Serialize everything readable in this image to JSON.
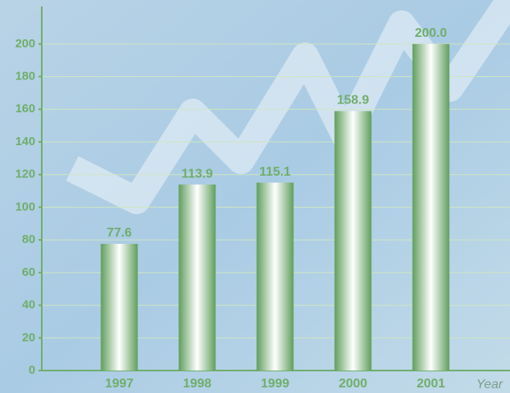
{
  "chart_data": {
    "type": "bar",
    "x_label": "Year",
    "categories": [
      "1997",
      "1998",
      "1999",
      "2000",
      "2001"
    ],
    "values": [
      77.6,
      113.9,
      115.1,
      158.9,
      200.0
    ],
    "value_labels": [
      "77.6",
      "113.9",
      "115.1",
      "158.9",
      "200.0"
    ],
    "color": "#6fae6a",
    "ylim": [
      0,
      223
    ],
    "yticks": [
      0,
      20,
      40,
      60,
      80,
      100,
      120,
      140,
      160,
      180,
      200
    ],
    "grid": true
  }
}
